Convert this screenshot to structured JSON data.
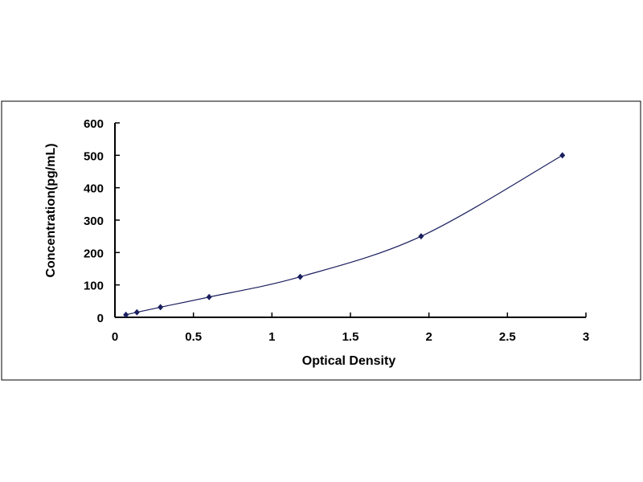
{
  "chart_data": {
    "type": "scatter",
    "title": "",
    "xlabel": "Optical Density",
    "ylabel": "Concentration(pg/mL)",
    "xlim": [
      0,
      3
    ],
    "ylim": [
      0,
      600
    ],
    "xticks": [
      "0",
      "0.5",
      "1",
      "1.5",
      "2",
      "2.5",
      "3"
    ],
    "yticks": [
      "0",
      "100",
      "200",
      "300",
      "400",
      "500",
      "600"
    ],
    "grid": false,
    "legend": "none",
    "trendline": "smooth curve through points",
    "marker_color": "#1a1f5e",
    "line_color": "#1a1f5e",
    "x": [
      0.07,
      0.14,
      0.29,
      0.6,
      1.18,
      1.95,
      2.85
    ],
    "y": [
      7.8,
      15.6,
      31.2,
      62.5,
      125,
      250,
      500
    ]
  }
}
